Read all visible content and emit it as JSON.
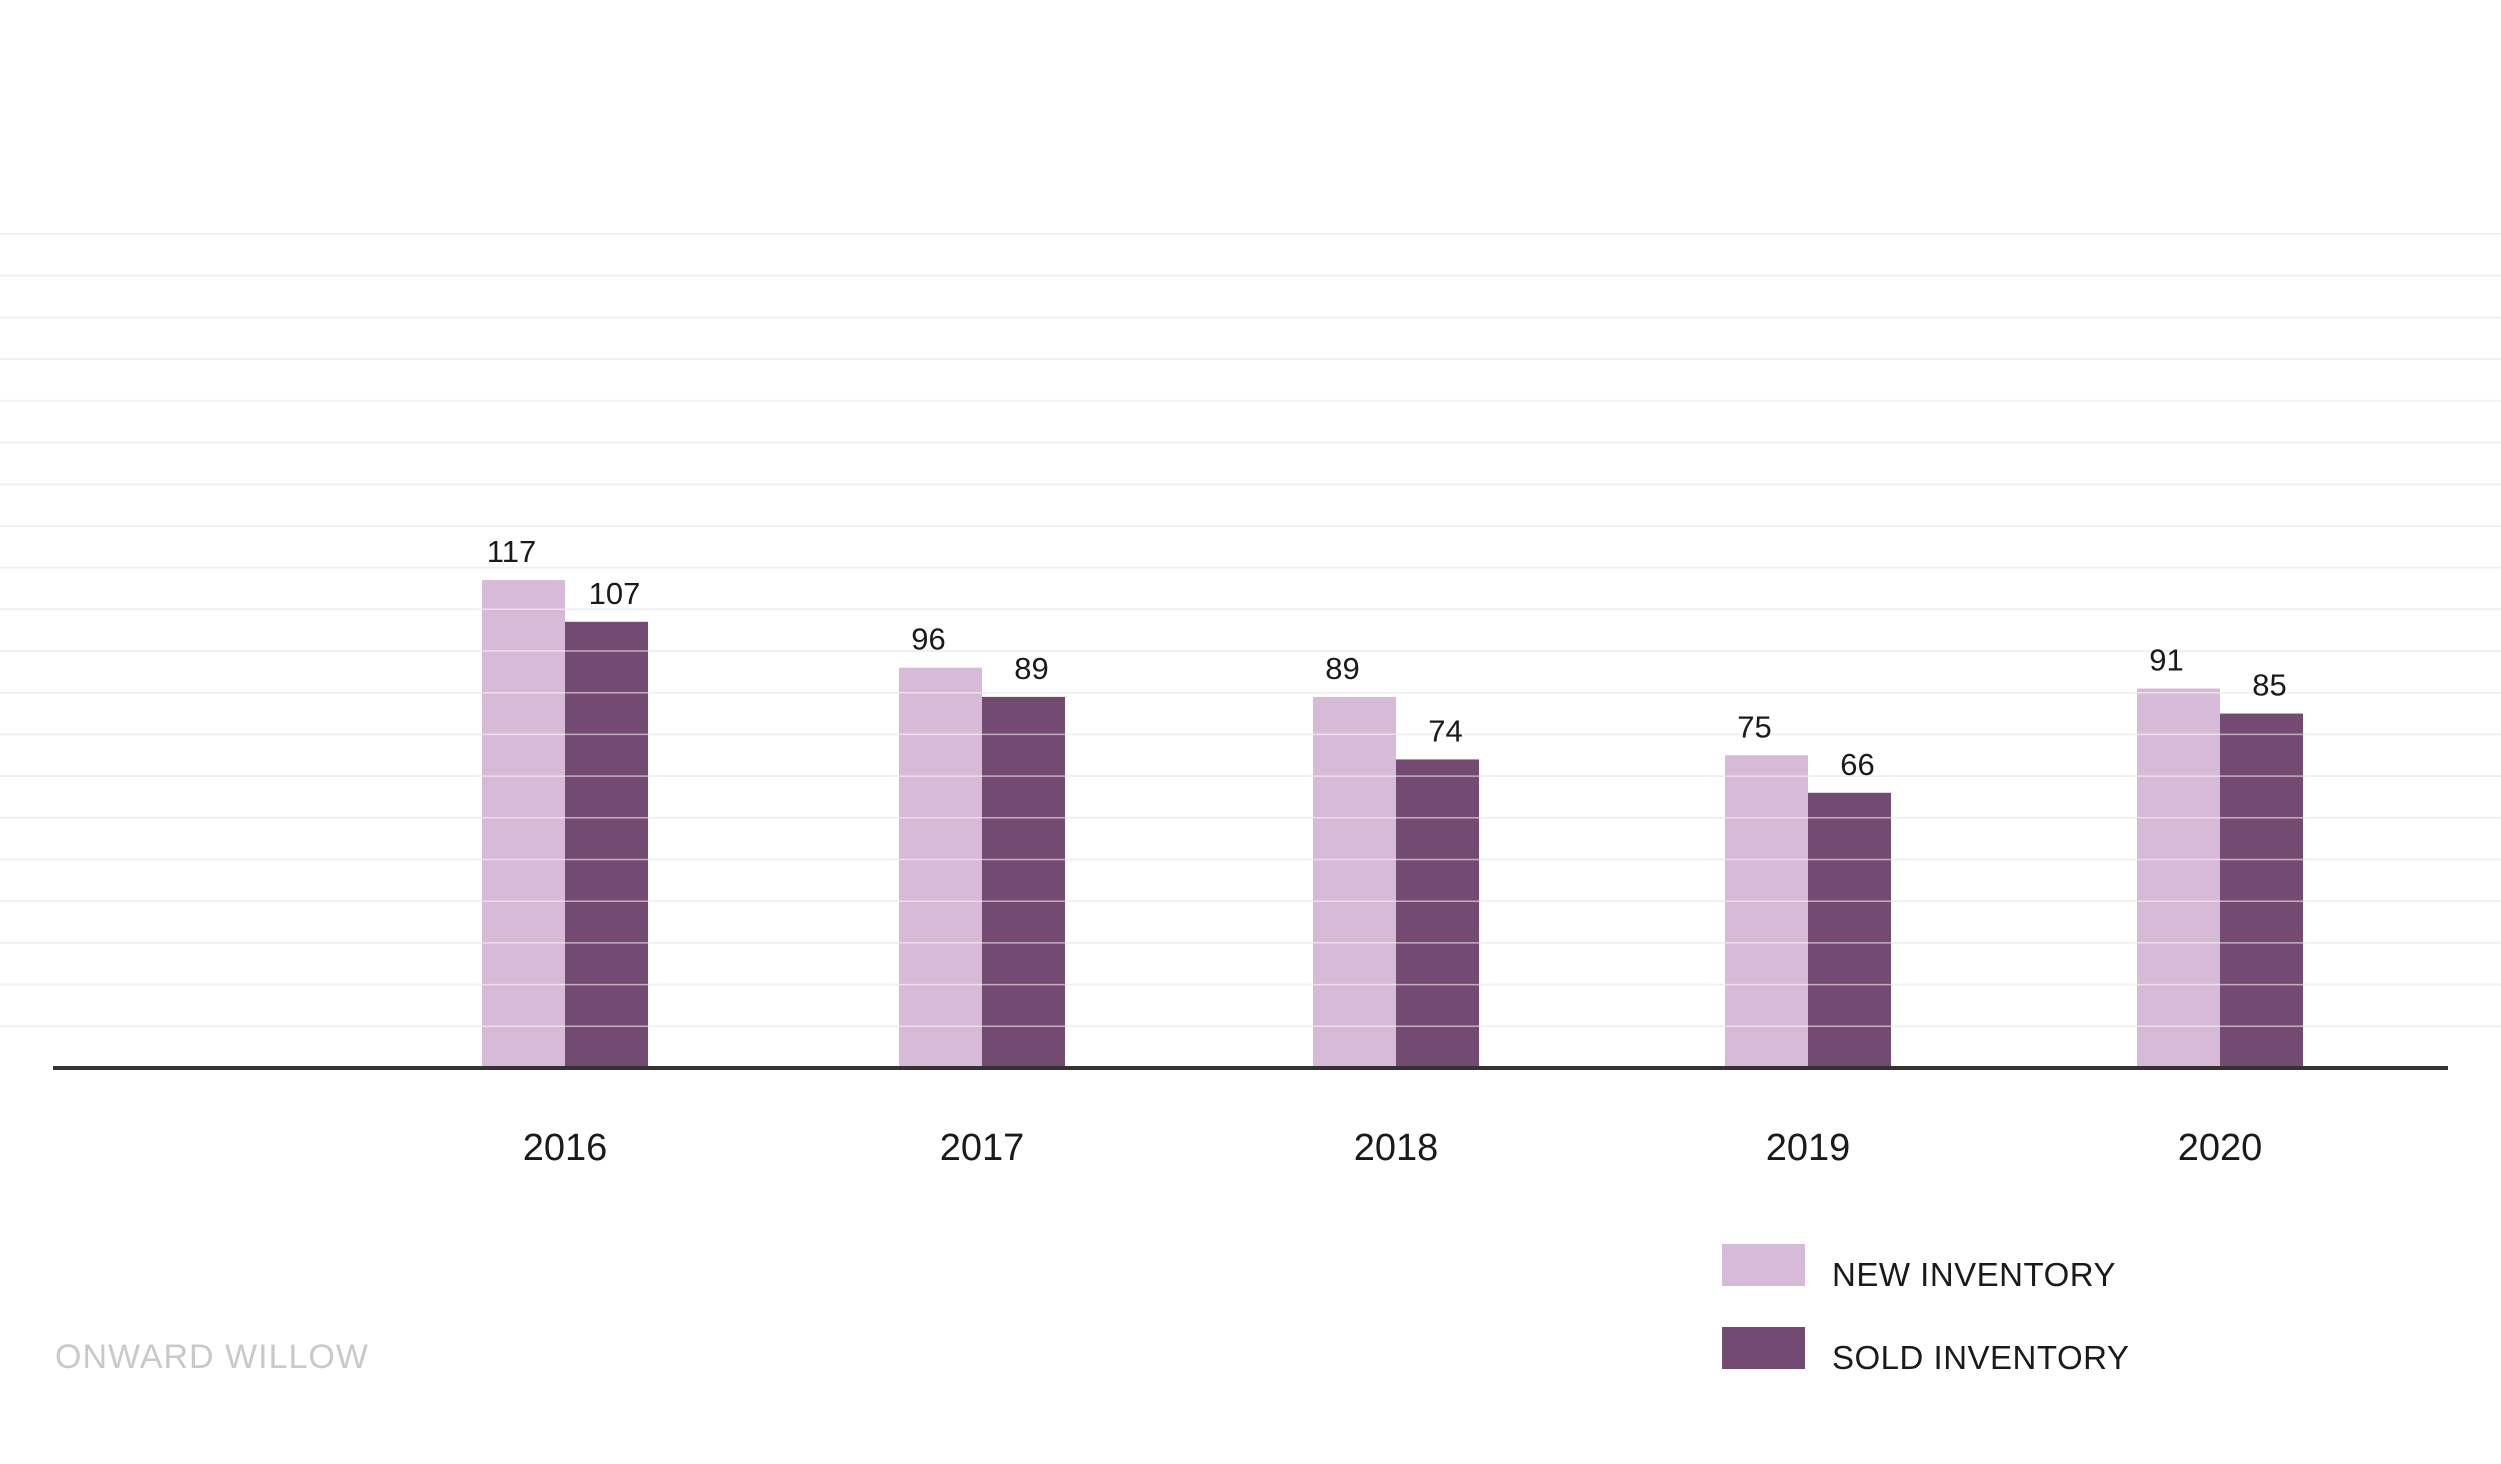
{
  "watermark": "ONWARD WILLOW",
  "chart_data": {
    "type": "bar",
    "title": "",
    "xlabel": "",
    "ylabel": "",
    "categories": [
      "2016",
      "2017",
      "2018",
      "2019",
      "2020"
    ],
    "series": [
      {
        "name": "NEW INVENTORY",
        "values": [
          117,
          96,
          89,
          75,
          91
        ],
        "color": "#d7b9d8"
      },
      {
        "name": "SOLD INVENTORY",
        "values": [
          107,
          89,
          74,
          66,
          85
        ],
        "color": "#734b72"
      }
    ],
    "ylim": [
      0,
      200
    ],
    "gridlines": true,
    "data_labels": true,
    "legend_position": "bottom-right"
  }
}
